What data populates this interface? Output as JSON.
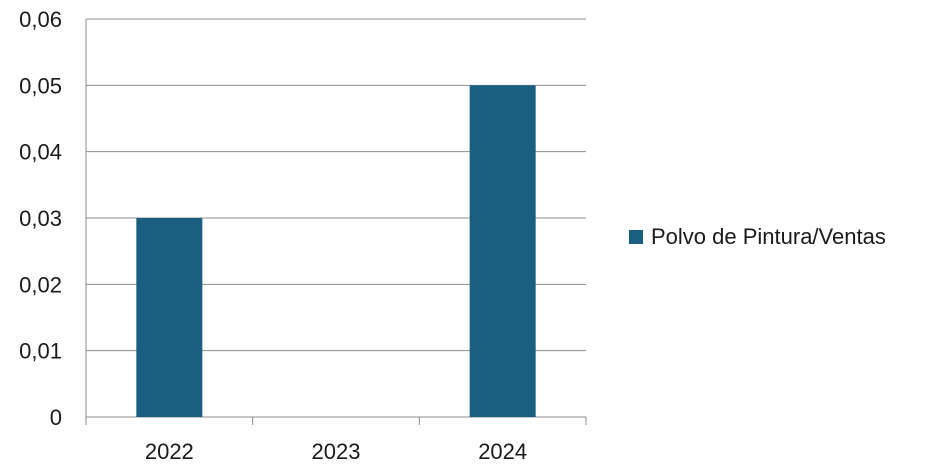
{
  "chart_data": {
    "type": "bar",
    "categories": [
      "2022",
      "2023",
      "2024"
    ],
    "series": [
      {
        "name": "Polvo de Pintura/Ventas",
        "values": [
          0.03,
          0,
          0.05
        ],
        "color": "#1a5e80"
      }
    ],
    "ylim": [
      0,
      0.06
    ],
    "yticks": [
      "0",
      "0,01",
      "0,02",
      "0,03",
      "0,04",
      "0,05",
      "0,06"
    ],
    "grid": true,
    "legend_position": "right"
  }
}
